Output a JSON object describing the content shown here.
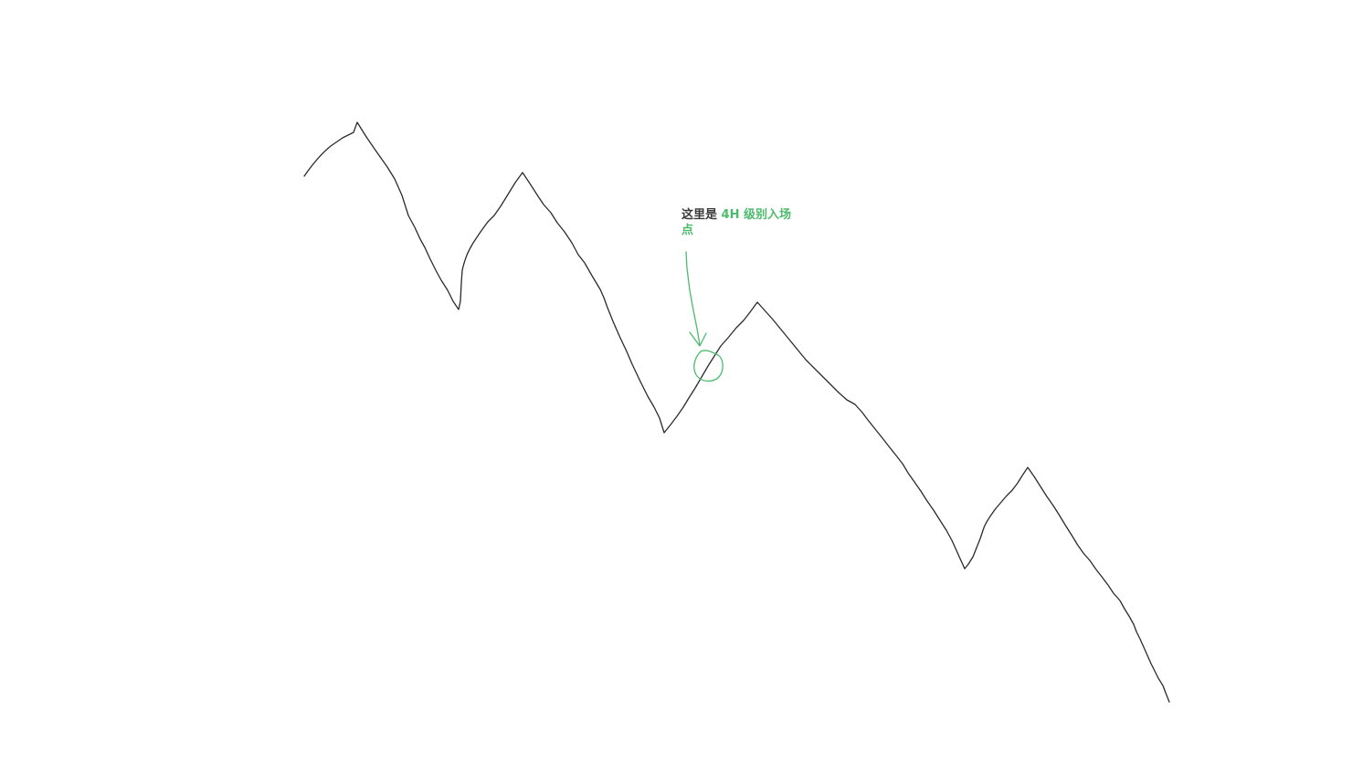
{
  "annotation": {
    "part1": "这里是",
    "part2": "4H 级别入场点"
  },
  "colors": {
    "line": "#2b2b2b",
    "accent": "#4cbb6c",
    "text_dark": "#3a3a3a",
    "background": "#ffffff"
  },
  "description_icons": {
    "arrow": "down-arrow-icon",
    "marker": "entry-point-circle-icon"
  }
}
